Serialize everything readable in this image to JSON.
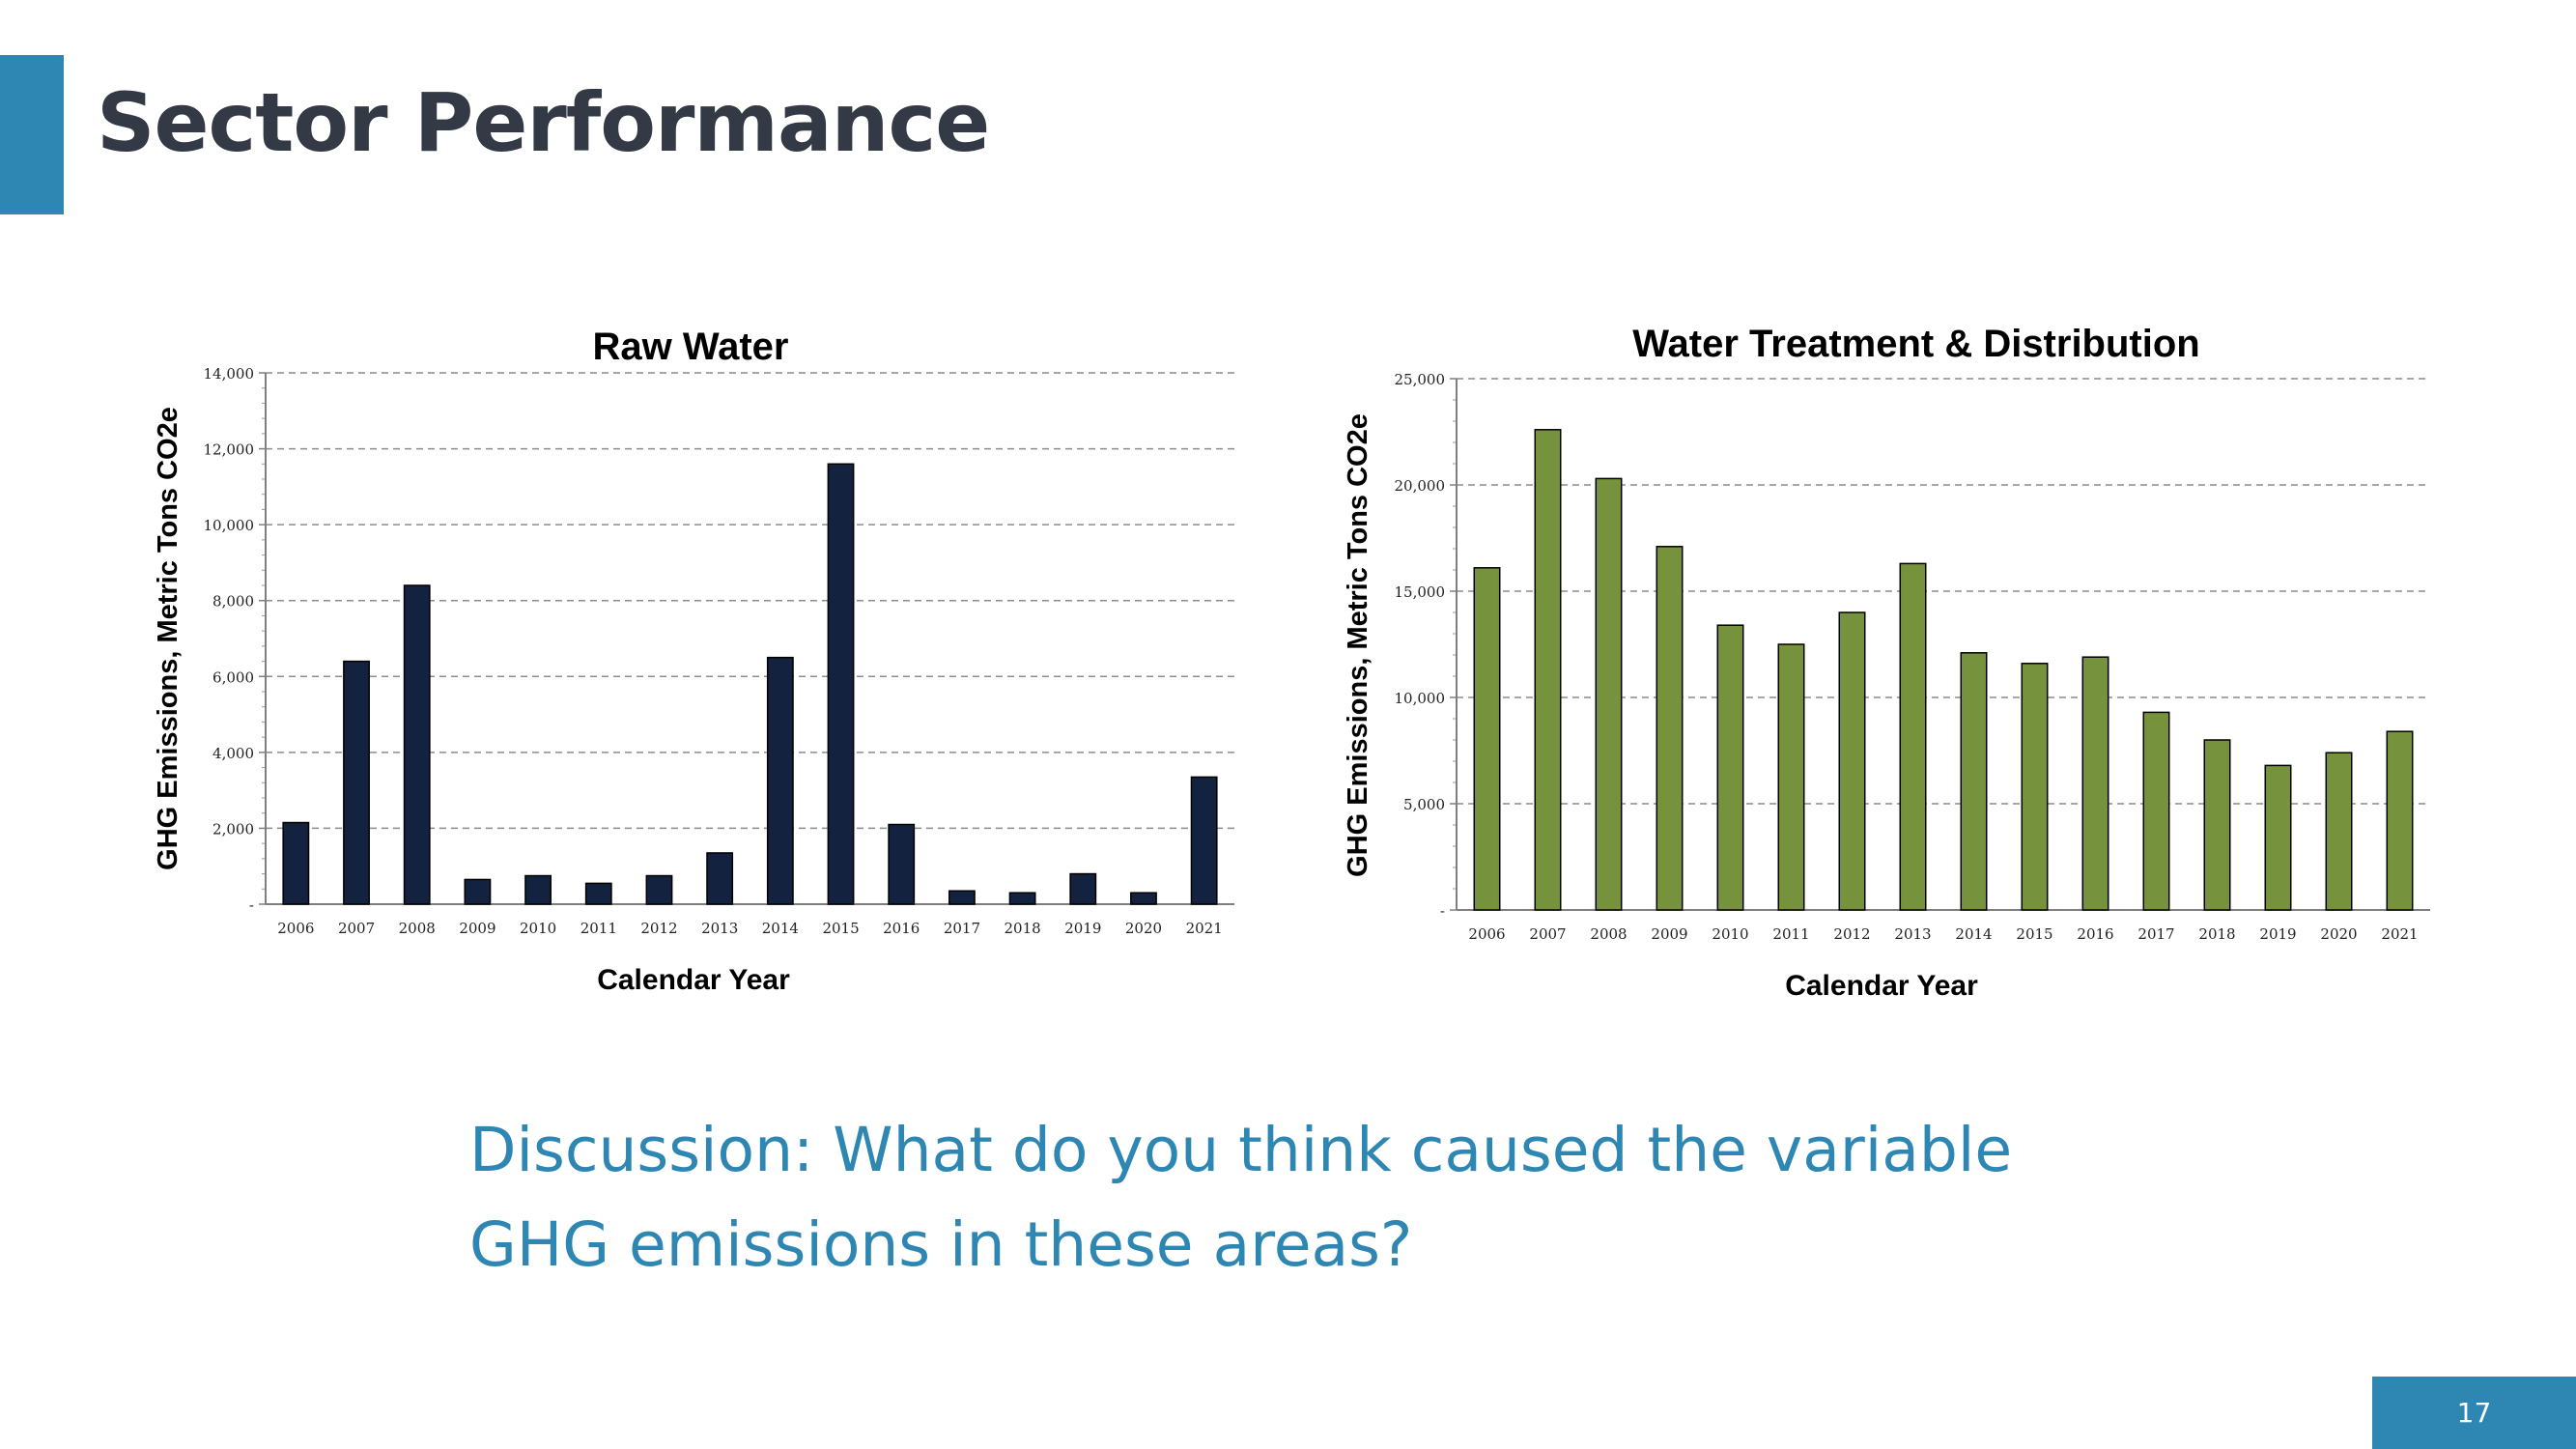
{
  "slide": {
    "title": "Sector Performance",
    "discussion_line1": "Discussion:  What do you think caused the variable",
    "discussion_line2": "GHG emissions in these areas?",
    "page_number": "17"
  },
  "colors": {
    "accent": "#2e86b3",
    "title_text": "#333a45",
    "raw_water_bar": "#13233f",
    "treatment_bar": "#76923c"
  },
  "chart_data": [
    {
      "type": "bar",
      "title": "Raw Water",
      "xlabel": "Calendar Year",
      "ylabel": "GHG Emissions, Metric Tons CO2e",
      "categories": [
        "2006",
        "2007",
        "2008",
        "2009",
        "2010",
        "2011",
        "2012",
        "2013",
        "2014",
        "2015",
        "2016",
        "2017",
        "2018",
        "2019",
        "2020",
        "2021"
      ],
      "values": [
        2150,
        6400,
        8400,
        650,
        750,
        550,
        750,
        1350,
        6500,
        11600,
        2100,
        350,
        300,
        800,
        300,
        3350
      ],
      "ylim": [
        0,
        14000
      ],
      "yticks": [
        "-",
        "2,000",
        "4,000",
        "6,000",
        "8,000",
        "10,000",
        "12,000",
        "14,000"
      ],
      "grid": true,
      "legend": "none"
    },
    {
      "type": "bar",
      "title": "Water Treatment & Distribution",
      "xlabel": "Calendar Year",
      "ylabel": "GHG Emissions, Metric Tons CO2e",
      "categories": [
        "2006",
        "2007",
        "2008",
        "2009",
        "2010",
        "2011",
        "2012",
        "2013",
        "2014",
        "2015",
        "2016",
        "2017",
        "2018",
        "2019",
        "2020",
        "2021"
      ],
      "values": [
        16100,
        22600,
        20300,
        17100,
        13400,
        12500,
        14000,
        16300,
        12100,
        11600,
        11900,
        9300,
        8000,
        6800,
        7400,
        8400
      ],
      "ylim": [
        0,
        25000
      ],
      "yticks": [
        "-",
        "5,000",
        "10,000",
        "15,000",
        "20,000",
        "25,000"
      ],
      "grid": true,
      "legend": "none"
    }
  ]
}
